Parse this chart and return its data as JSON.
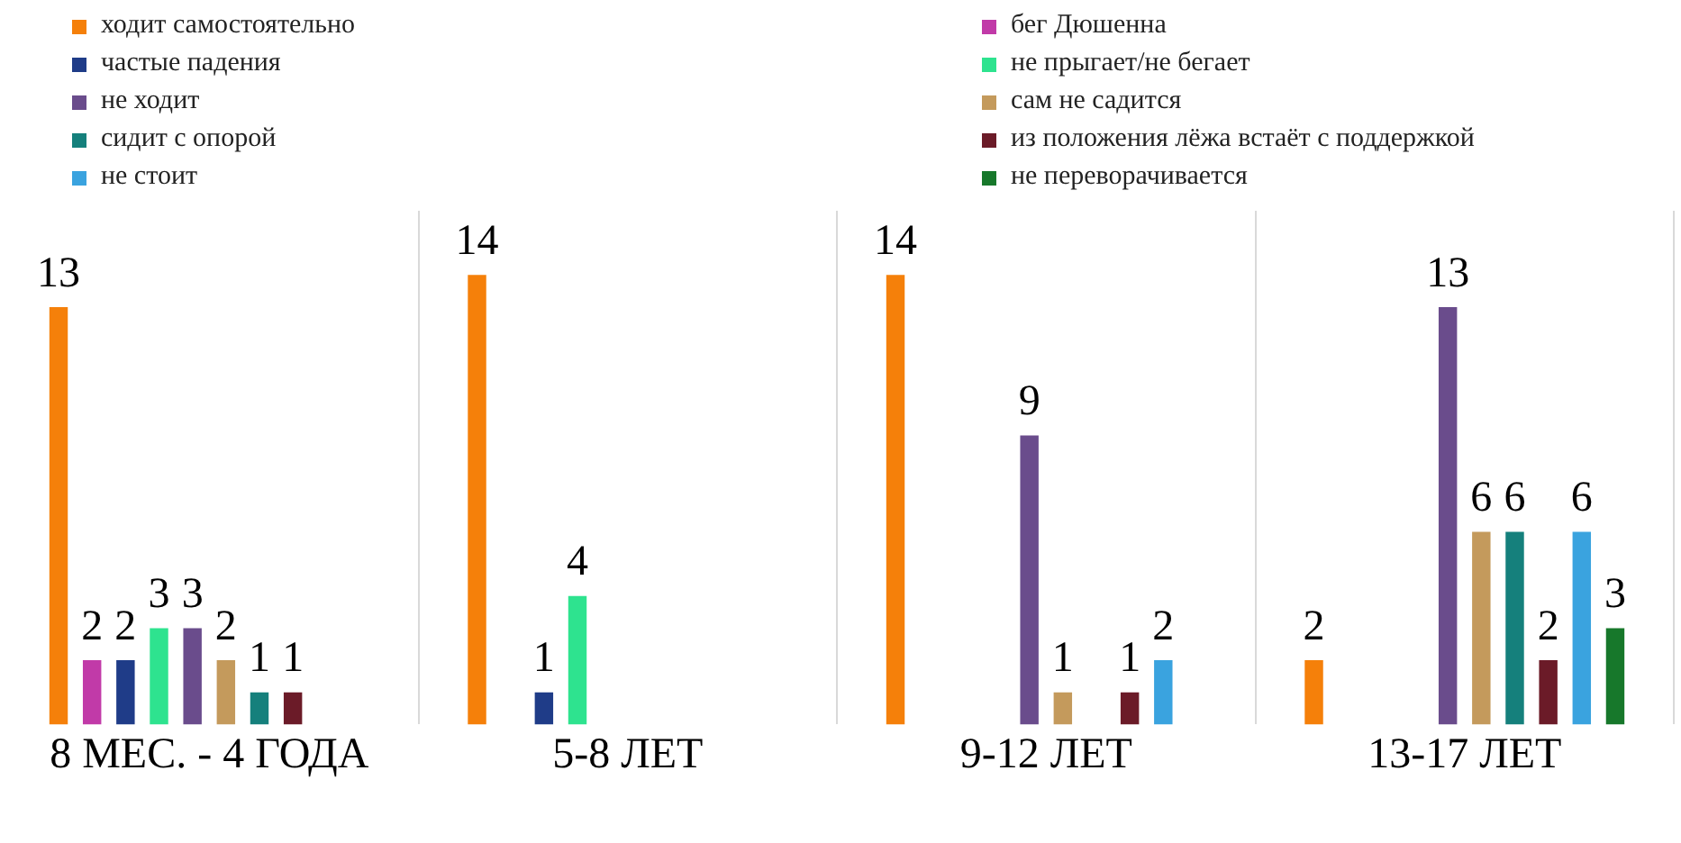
{
  "chart_data": {
    "type": "bar",
    "categories": [
      "8 МЕС. - 4 ГОДА",
      "5-8 ЛЕТ",
      "9-12 ЛЕТ",
      "13-17 ЛЕТ"
    ],
    "series": [
      {
        "name": "ходит самостоятельно",
        "color": "#f5800a",
        "values": [
          13,
          14,
          14,
          2
        ]
      },
      {
        "name": "бег Дюшенна",
        "color": "#c13aa8",
        "values": [
          2,
          null,
          null,
          null
        ]
      },
      {
        "name": "частые падения",
        "color": "#1f3c88",
        "values": [
          2,
          1,
          null,
          null
        ]
      },
      {
        "name": "не прыгает/не бегает",
        "color": "#2ee38f",
        "values": [
          3,
          4,
          null,
          null
        ]
      },
      {
        "name": "не ходит",
        "color": "#6a4c8c",
        "values": [
          3,
          null,
          9,
          13
        ]
      },
      {
        "name": "сам не садится",
        "color": "#c49a5c",
        "values": [
          2,
          null,
          1,
          6
        ]
      },
      {
        "name": "сидит с опорой",
        "color": "#15807c",
        "values": [
          1,
          null,
          null,
          6
        ]
      },
      {
        "name": "из положения лёжа встаёт с поддержкой",
        "color": "#6b1b28",
        "values": [
          1,
          null,
          1,
          2
        ]
      },
      {
        "name": "не стоит",
        "color": "#3aa3df",
        "values": [
          null,
          null,
          2,
          6
        ]
      },
      {
        "name": "не переворачивается",
        "color": "#17782b",
        "values": [
          null,
          null,
          null,
          3
        ]
      }
    ],
    "data_labels": true,
    "grid": "x",
    "legend": "top"
  }
}
